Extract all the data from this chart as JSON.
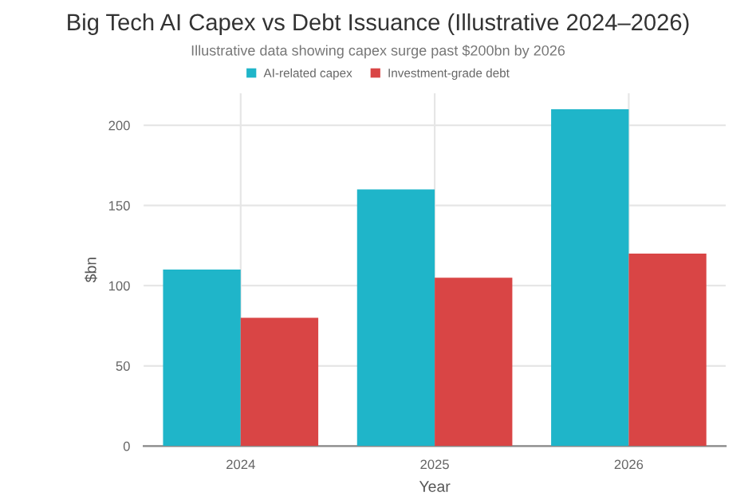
{
  "chart_data": {
    "type": "bar",
    "title": "Big Tech AI Capex vs Debt Issuance (Illustrative 2024–2026)",
    "subtitle": "Illustrative data showing capex surge past $200bn by 2026",
    "xlabel": "Year",
    "ylabel": "$bn",
    "categories": [
      "2024",
      "2025",
      "2026"
    ],
    "series": [
      {
        "name": "AI-related capex",
        "color": "#1fb5c9",
        "values": [
          110,
          160,
          210
        ]
      },
      {
        "name": "Investment-grade debt",
        "color": "#d94545",
        "values": [
          80,
          105,
          120
        ]
      }
    ],
    "ylim": [
      0,
      220
    ],
    "yticks": [
      0,
      50,
      100,
      150,
      200
    ],
    "grid": true,
    "legend": "top"
  }
}
